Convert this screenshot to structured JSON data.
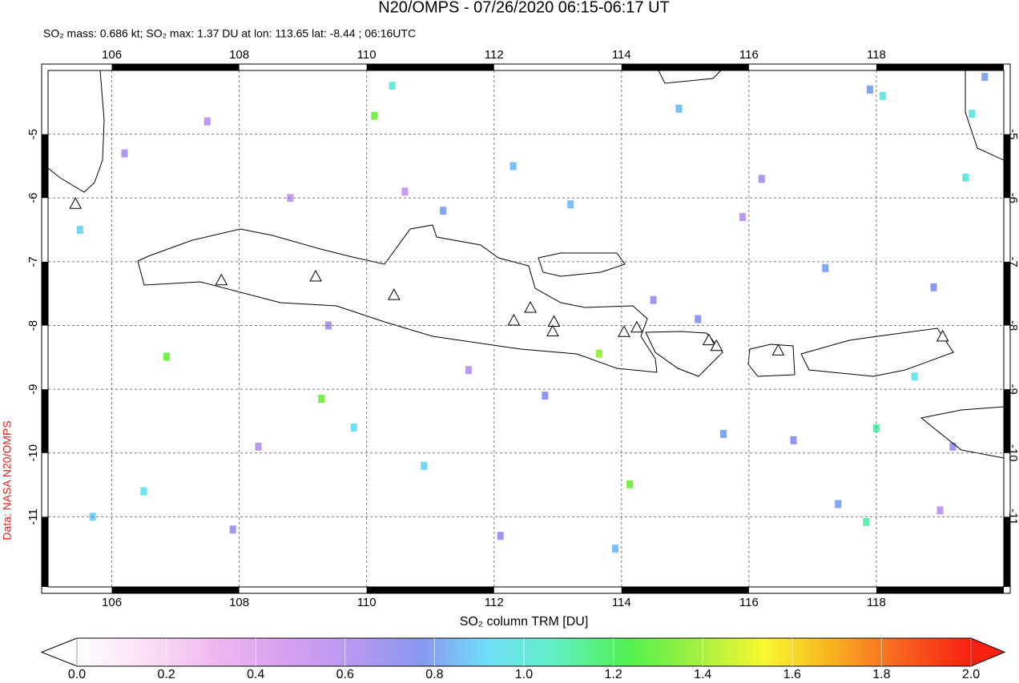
{
  "chart_data": {
    "type": "map",
    "title": "N20/OMPS - 07/26/2020 06:15-06:17 UT",
    "subtitle": "SO₂ mass: 0.686 kt; SO₂ max: 1.37 DU at lon: 113.65 lat: -8.44 ; 06:16UTC",
    "source": "Data: NASA N20/OMPS",
    "colorbar_label": "SO₂ column TRM [DU]",
    "xlim": [
      105,
      120
    ],
    "ylim": [
      -12.1,
      -4
    ],
    "xticks": [
      106,
      108,
      110,
      112,
      114,
      116,
      118
    ],
    "yticks": [
      -5,
      -6,
      -7,
      -8,
      -9,
      -10,
      -11
    ],
    "grid": true,
    "clim": [
      0,
      2
    ],
    "cticks": [
      {
        "value": 0,
        "label": "0.0"
      },
      0.2,
      0.4,
      0.6,
      0.8,
      {
        "value": 1,
        "label": "1.0"
      },
      1.2,
      1.4,
      1.6,
      1.8,
      {
        "value": 2,
        "label": "2.0"
      }
    ],
    "colorscale": [
      "#ffffff",
      "#fbe0f6",
      "#f0b8f0",
      "#d8a0f0",
      "#b898f0",
      "#8898f0",
      "#70e0f8",
      "#60f0c0",
      "#50f050",
      "#a0f040",
      "#f8f830",
      "#f8b020",
      "#f86020",
      "#f82010"
    ],
    "pixels": {
      "lon": [
        110.12,
        106.86,
        109.29,
        113.65,
        114.13,
        110.4,
        118.1,
        119.5,
        119.4,
        118.0,
        117.84,
        114.9,
        112.3,
        111.2,
        109.8,
        107.5,
        106.2,
        105.5,
        108.8,
        110.9,
        113.2,
        115.6,
        116.7,
        117.2,
        118.6,
        119.2,
        119.7,
        106.5,
        107.9,
        109.4,
        111.6,
        112.8,
        114.5,
        115.9,
        117.4,
        118.9,
        105.7,
        108.3,
        110.6,
        113.9,
        116.2,
        117.9,
        119.0,
        112.1,
        115.2
      ],
      "lat": [
        -4.71,
        -8.49,
        -9.15,
        -8.44,
        -10.49,
        -4.24,
        -4.4,
        -4.68,
        -5.68,
        -9.61,
        -11.08,
        -4.6,
        -5.5,
        -6.2,
        -9.6,
        -4.8,
        -5.3,
        -6.5,
        -6.0,
        -10.2,
        -6.1,
        -9.7,
        -9.8,
        -7.1,
        -8.8,
        -9.9,
        -4.1,
        -10.6,
        -11.2,
        -8.0,
        -8.7,
        -9.1,
        -7.6,
        -6.3,
        -10.8,
        -7.4,
        -11.0,
        -9.9,
        -5.9,
        -11.5,
        -5.7,
        -4.3,
        -10.9,
        -11.3,
        -7.9
      ],
      "values": [
        1.3,
        1.3,
        1.3,
        1.37,
        1.3,
        1.0,
        1.0,
        1.0,
        1.0,
        1.1,
        1.1,
        0.85,
        0.85,
        0.8,
        0.95,
        0.6,
        0.65,
        0.9,
        0.55,
        0.9,
        0.85,
        0.8,
        0.75,
        0.8,
        0.95,
        0.7,
        0.8,
        0.95,
        0.7,
        0.65,
        0.6,
        0.75,
        0.7,
        0.6,
        0.8,
        0.75,
        0.9,
        0.6,
        0.55,
        0.85,
        0.65,
        0.8,
        0.6,
        0.7,
        0.75
      ]
    },
    "volcanoes": {
      "lon": [
        105.43,
        107.72,
        109.2,
        110.43,
        112.31,
        112.57,
        112.94,
        112.92,
        114.04,
        114.24,
        115.37,
        115.49,
        116.46,
        119.04
      ],
      "lat": [
        -6.1,
        -7.3,
        -7.24,
        -7.53,
        -7.93,
        -7.73,
        -7.95,
        -8.1,
        -8.11,
        -8.04,
        -8.24,
        -8.33,
        -8.4,
        -8.18
      ]
    }
  }
}
